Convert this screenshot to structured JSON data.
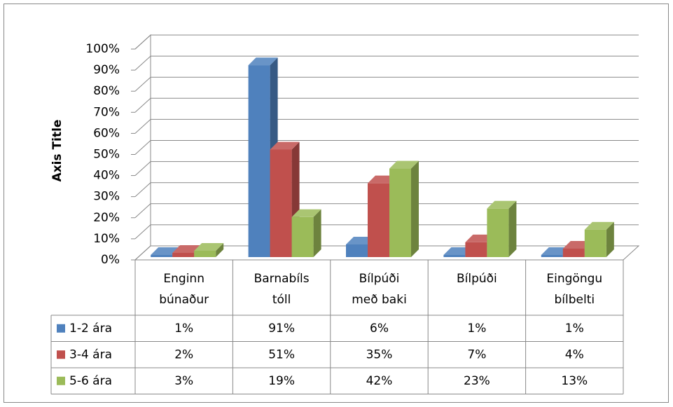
{
  "chart_data": {
    "type": "bar3d",
    "y_axis_label": "Axis Title",
    "categories": [
      [
        "Enginn",
        "búnaður"
      ],
      [
        "Barnabíls",
        "tóll"
      ],
      [
        "Bílpúði",
        "með baki"
      ],
      [
        "Bílpúði"
      ],
      [
        "Eingöngu",
        "bílbelti"
      ]
    ],
    "series": [
      {
        "name": "1-2 ára",
        "color": "#4f81bd",
        "values": [
          1,
          91,
          6,
          1,
          1
        ],
        "value_labels": [
          "1%",
          "91%",
          "6%",
          "1%",
          "1%"
        ]
      },
      {
        "name": "3-4 ára",
        "color": "#c0504d",
        "values": [
          2,
          51,
          35,
          7,
          4
        ],
        "value_labels": [
          "2%",
          "51%",
          "35%",
          "7%",
          "4%"
        ]
      },
      {
        "name": "5-6 ára",
        "color": "#9bbb59",
        "values": [
          3,
          19,
          42,
          23,
          13
        ],
        "value_labels": [
          "3%",
          "19%",
          "42%",
          "23%",
          "13%"
        ]
      }
    ],
    "ylim": [
      0,
      100
    ],
    "yticks": [
      {
        "value": 0,
        "label": "0%"
      },
      {
        "value": 10,
        "label": "10%"
      },
      {
        "value": 20,
        "label": "20%"
      },
      {
        "value": 30,
        "label": "30%"
      },
      {
        "value": 40,
        "label": "40%"
      },
      {
        "value": 50,
        "label": "50%"
      },
      {
        "value": 60,
        "label": "60%"
      },
      {
        "value": 70,
        "label": "70%"
      },
      {
        "value": 80,
        "label": "80%"
      },
      {
        "value": 90,
        "label": "90%"
      },
      {
        "value": 100,
        "label": "100%"
      }
    ],
    "grid": true,
    "data_table": true
  }
}
